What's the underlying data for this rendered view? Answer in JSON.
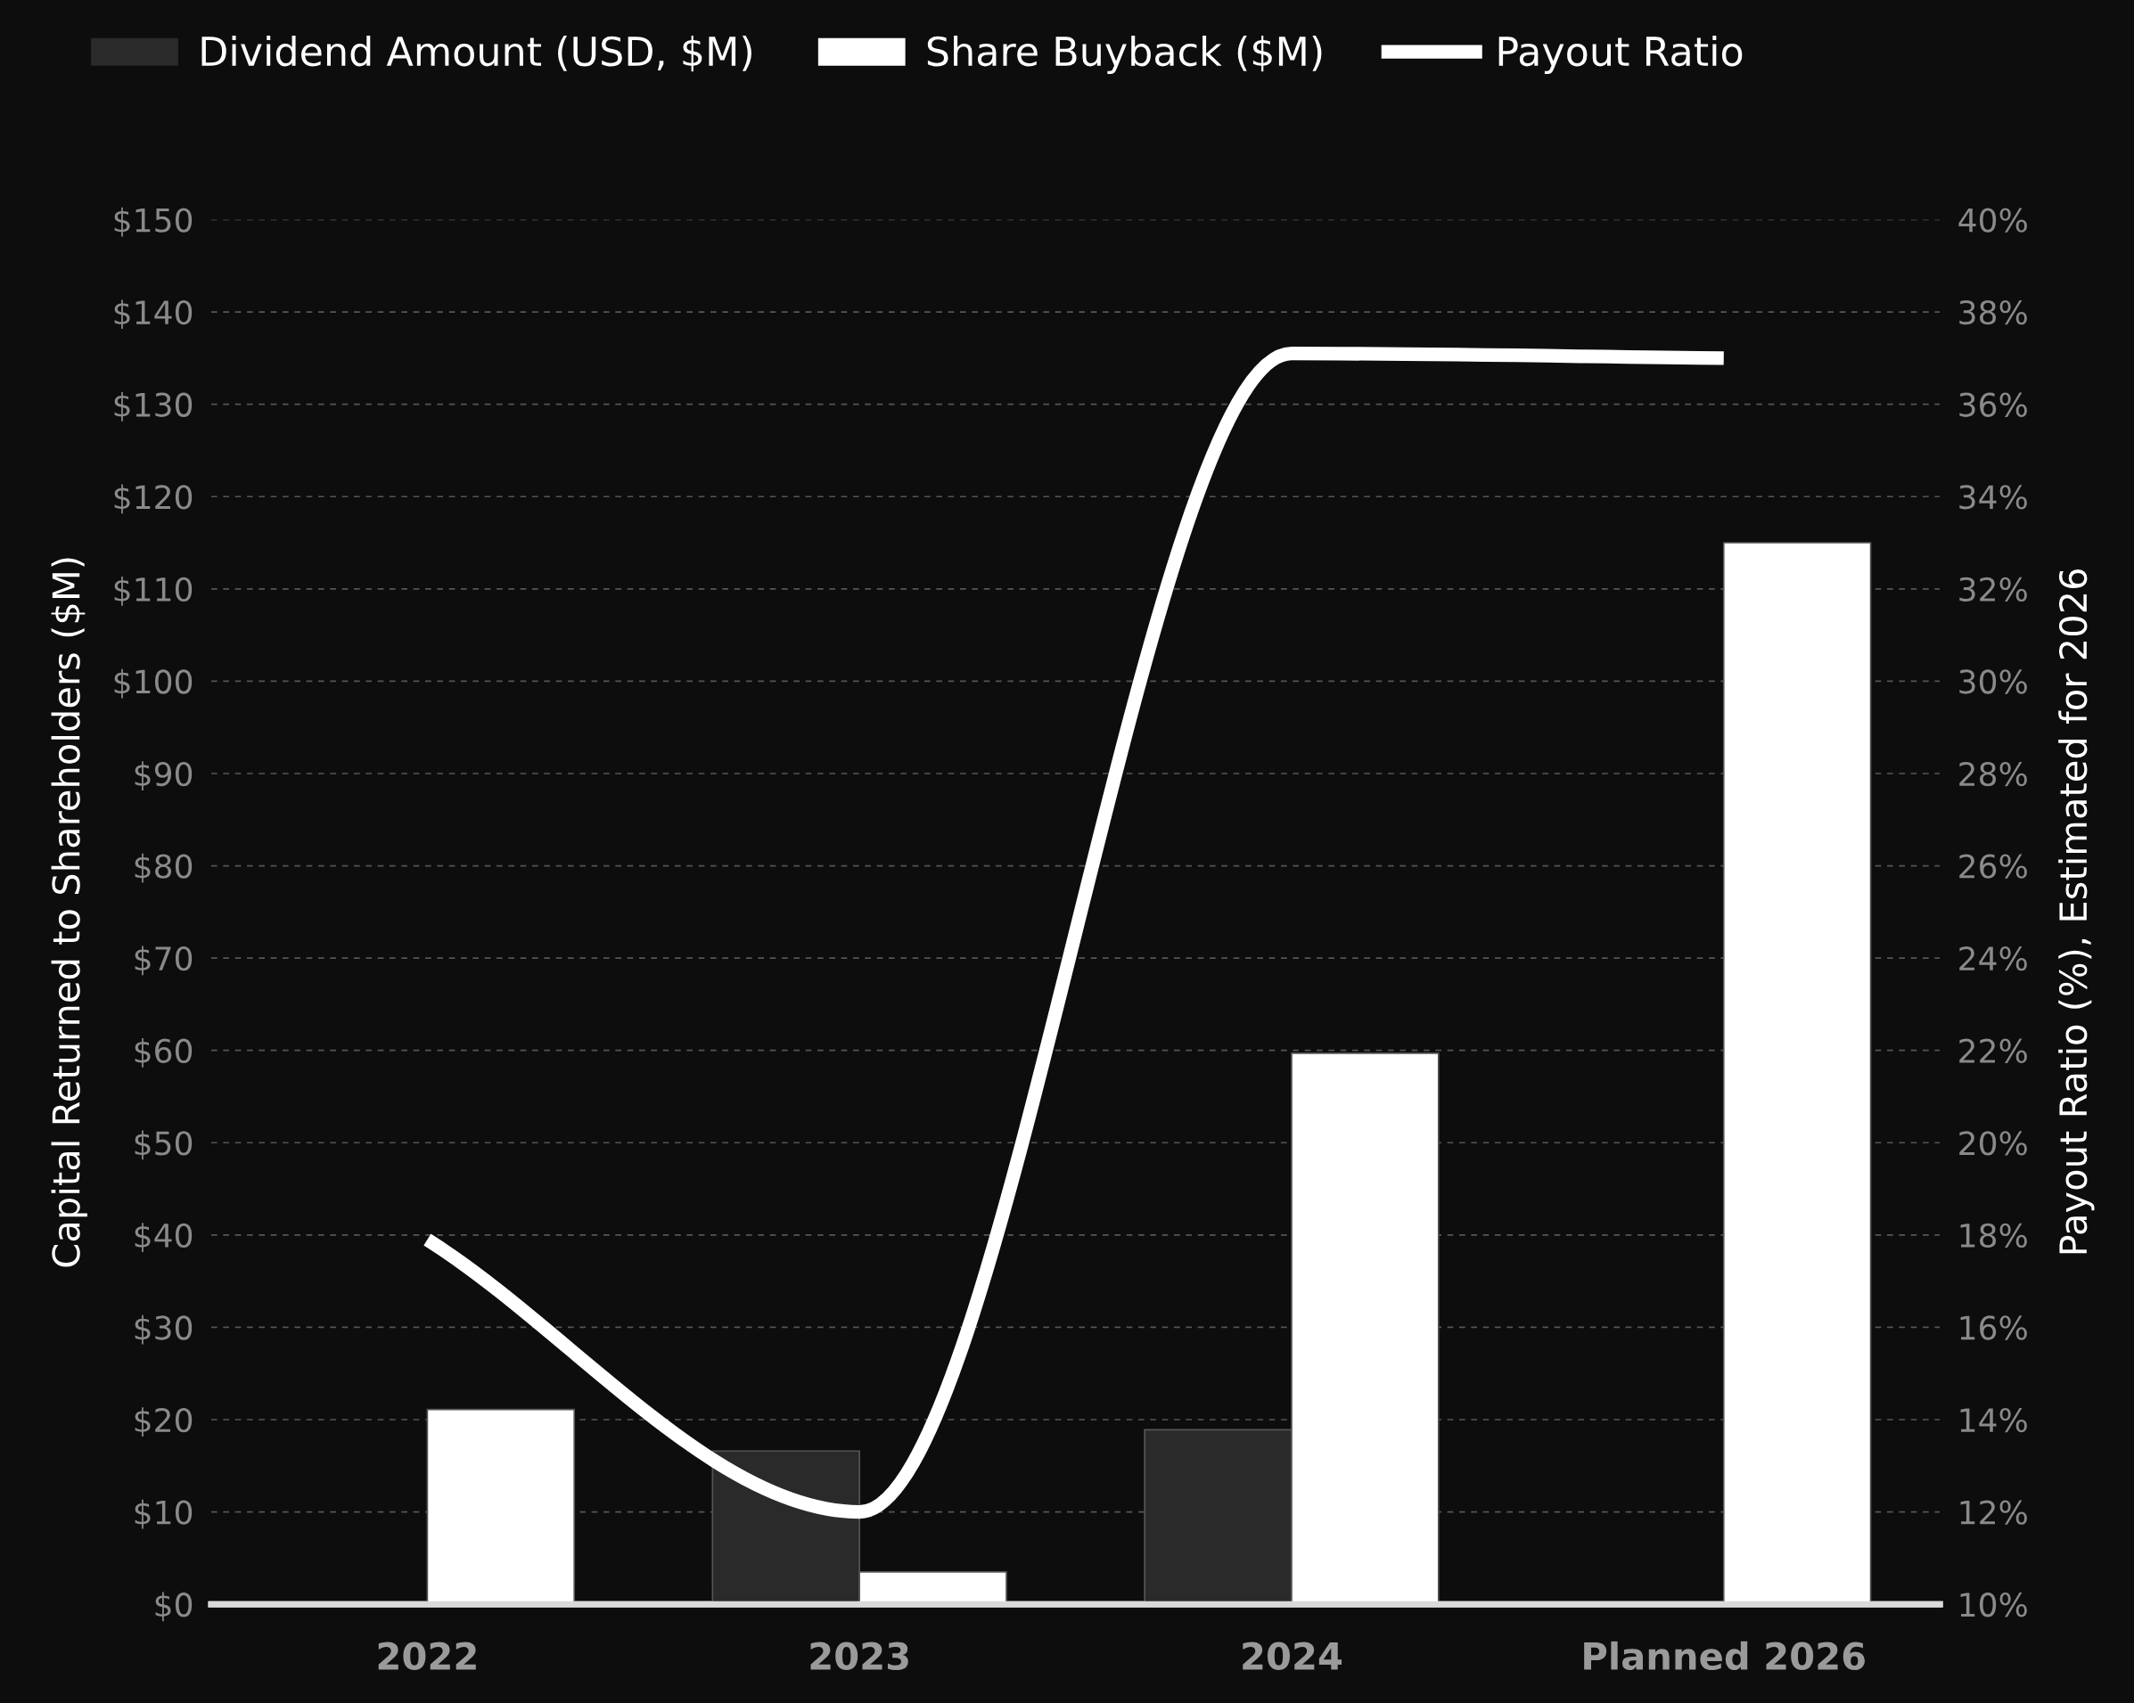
{
  "chart_data": {
    "type": "bar",
    "categories": [
      "2022",
      "2023",
      "2024",
      "Planned 2026"
    ],
    "series": [
      {
        "name": "Dividend Amount (USD, $M)",
        "color": "#2a2a2a",
        "values": [
          null,
          16.6,
          18.9,
          null
        ]
      },
      {
        "name": "Share Buyback ($M)",
        "color": "#ffffff",
        "values": [
          21.1,
          3.5,
          59.7,
          115.0
        ]
      },
      {
        "name": "Payout Ratio",
        "type": "line",
        "axis": "y2",
        "color": "#ffffff",
        "values": [
          17.9,
          12.0,
          37.1,
          37.0
        ]
      }
    ],
    "ylabel": "Capital Returned to Shareholders ($M)",
    "y2label": "Payout Ratio (%), Estimated for 2026",
    "ylim": [
      0,
      150
    ],
    "yticks": [
      {
        "value": 0,
        "label": "$0"
      },
      {
        "value": 10,
        "label": "$10"
      },
      {
        "value": 20,
        "label": "$20"
      },
      {
        "value": 30,
        "label": "$30"
      },
      {
        "value": 40,
        "label": "$40"
      },
      {
        "value": 50,
        "label": "$50"
      },
      {
        "value": 60,
        "label": "$60"
      },
      {
        "value": 70,
        "label": "$70"
      },
      {
        "value": 80,
        "label": "$80"
      },
      {
        "value": 90,
        "label": "$90"
      },
      {
        "value": 100,
        "label": "$100"
      },
      {
        "value": 110,
        "label": "$110"
      },
      {
        "value": 120,
        "label": "$120"
      },
      {
        "value": 130,
        "label": "$130"
      },
      {
        "value": 140,
        "label": "$140"
      },
      {
        "value": 150,
        "label": "$150"
      }
    ],
    "y2lim": [
      10,
      40
    ],
    "y2ticks": [
      {
        "value": 10,
        "label": "10%"
      },
      {
        "value": 12,
        "label": "12%"
      },
      {
        "value": 14,
        "label": "14%"
      },
      {
        "value": 16,
        "label": "16%"
      },
      {
        "value": 18,
        "label": "18%"
      },
      {
        "value": 20,
        "label": "20%"
      },
      {
        "value": 22,
        "label": "22%"
      },
      {
        "value": 24,
        "label": "24%"
      },
      {
        "value": 26,
        "label": "26%"
      },
      {
        "value": 28,
        "label": "28%"
      },
      {
        "value": 30,
        "label": "30%"
      },
      {
        "value": 32,
        "label": "32%"
      },
      {
        "value": 34,
        "label": "34%"
      },
      {
        "value": 36,
        "label": "36%"
      },
      {
        "value": 38,
        "label": "38%"
      },
      {
        "value": 40,
        "label": "40%"
      }
    ],
    "grid": "y",
    "legend": "top"
  }
}
